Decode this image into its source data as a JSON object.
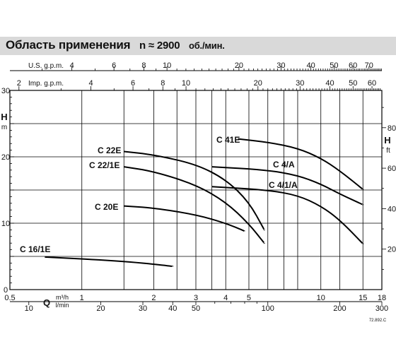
{
  "title": {
    "main": "Область применения",
    "speed": "n ≈ 2900",
    "unit": "об./мин."
  },
  "axes": {
    "usgpm_label": "U.S. g.p.m.",
    "usgpm_ticks": [
      "4",
      "6",
      "8",
      "10",
      "20",
      "30",
      "40",
      "50",
      "60",
      "70"
    ],
    "impgpm_label": "Imp. g.p.m.",
    "impgpm_ticks": [
      "2",
      "4",
      "6",
      "8",
      "10",
      "20",
      "30",
      "40",
      "50",
      "60"
    ],
    "head_m_label": "H",
    "head_m_unit": "m",
    "head_m_ticks": [
      "0",
      "10",
      "20",
      "30"
    ],
    "head_ft_label": "H",
    "head_ft_unit": "ft",
    "head_ft_ticks": [
      "20",
      "40",
      "60",
      "80"
    ],
    "flow_q_label": "Q",
    "flow_m3h_unit": "m³/h",
    "flow_lmin_unit": "l/min",
    "flow_m3h_ticks": [
      "0.5",
      "1",
      "2",
      "3",
      "4",
      "5",
      "10",
      "15",
      "18"
    ],
    "flow_lmin_ticks": [
      "10",
      "20",
      "30",
      "40",
      "50",
      "100",
      "200",
      "300"
    ]
  },
  "code": "72.892.C",
  "chart_data": {
    "type": "line",
    "title": "Область применения n ≈ 2900 об./мин.",
    "xlabel": "Q m³/h l/min",
    "ylabel": "H m",
    "x_scale": "log",
    "xlim": [
      0.5,
      18
    ],
    "ylim": [
      0,
      30
    ],
    "grid": true,
    "series": [
      {
        "name": "C 16/1E",
        "x": [
          0.7,
          1.5,
          2.4
        ],
        "y": [
          4.9,
          4.3,
          3.5
        ]
      },
      {
        "name": "C 20E",
        "x": [
          1.5,
          2.0,
          3.0,
          4.0,
          4.8
        ],
        "y": [
          12.6,
          12.3,
          11.3,
          10.0,
          8.8
        ]
      },
      {
        "name": "C 22E",
        "x": [
          1.5,
          2.0,
          3.0,
          4.0,
          5.0,
          5.8
        ],
        "y": [
          20.8,
          20.3,
          18.9,
          16.6,
          13.2,
          9.0
        ]
      },
      {
        "name": "C 22/1E",
        "x": [
          1.5,
          2.0,
          3.0,
          4.0,
          5.0,
          5.8
        ],
        "y": [
          18.5,
          17.8,
          15.8,
          13.2,
          9.9,
          7.0
        ]
      },
      {
        "name": "C 41E",
        "x": [
          4.5,
          6.0,
          8.0,
          10.0,
          12.0,
          15.0
        ],
        "y": [
          22.7,
          22.2,
          21.3,
          19.8,
          17.9,
          15.1
        ]
      },
      {
        "name": "C 4/A",
        "x": [
          3.5,
          6.0,
          8.0,
          10.0,
          12.0,
          15.0
        ],
        "y": [
          18.5,
          18.0,
          17.2,
          15.9,
          14.4,
          12.8
        ]
      },
      {
        "name": "C 4/1/A",
        "x": [
          3.5,
          6.0,
          8.0,
          10.0,
          12.0,
          15.0
        ],
        "y": [
          15.5,
          15.0,
          14.2,
          12.6,
          10.5,
          6.9
        ]
      }
    ]
  }
}
